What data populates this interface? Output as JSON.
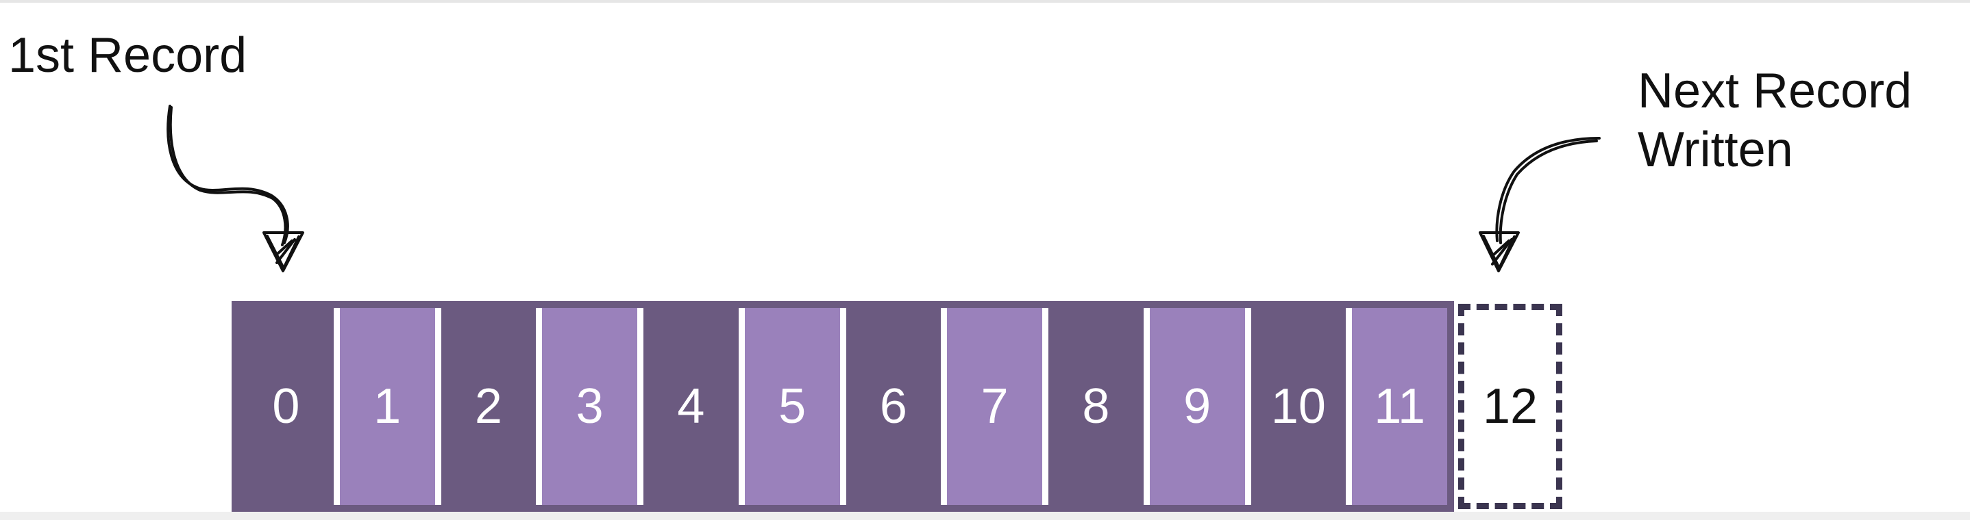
{
  "labels": {
    "first_record": "1st Record",
    "next_record": "Next Record\nWritten"
  },
  "records": [
    {
      "label": "0",
      "shade": "dark"
    },
    {
      "label": "1",
      "shade": "light"
    },
    {
      "label": "2",
      "shade": "dark"
    },
    {
      "label": "3",
      "shade": "light"
    },
    {
      "label": "4",
      "shade": "dark"
    },
    {
      "label": "5",
      "shade": "light"
    },
    {
      "label": "6",
      "shade": "dark"
    },
    {
      "label": "7",
      "shade": "light"
    },
    {
      "label": "8",
      "shade": "dark"
    },
    {
      "label": "9",
      "shade": "light"
    },
    {
      "label": "10",
      "shade": "dark"
    },
    {
      "label": "11",
      "shade": "light"
    }
  ],
  "next_record": {
    "label": "12"
  },
  "colors": {
    "dark": "#6b5a80",
    "light": "#9a81bb",
    "border": "#3b3550",
    "text": "#111111"
  }
}
